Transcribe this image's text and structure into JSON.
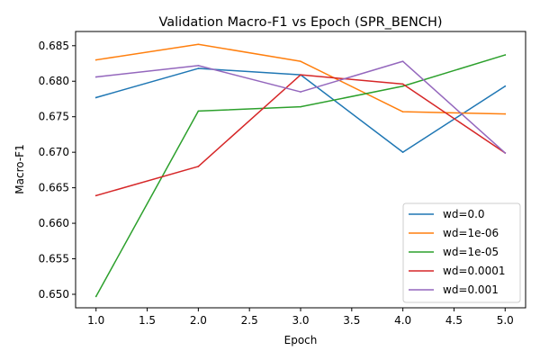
{
  "chart_data": {
    "type": "line",
    "title": "Validation Macro-F1 vs Epoch (SPR_BENCH)",
    "xlabel": "Epoch",
    "ylabel": "Macro-F1",
    "xlim": [
      0.8,
      5.2
    ],
    "ylim": [
      0.6481,
      0.687
    ],
    "xticks": [
      1.0,
      1.5,
      2.0,
      2.5,
      3.0,
      3.5,
      4.0,
      4.5,
      5.0
    ],
    "xtick_labels": [
      "1.0",
      "1.5",
      "2.0",
      "2.5",
      "3.0",
      "3.5",
      "4.0",
      "4.5",
      "5.0"
    ],
    "yticks": [
      0.65,
      0.655,
      0.66,
      0.665,
      0.67,
      0.675,
      0.68,
      0.685
    ],
    "ytick_labels": [
      "0.650",
      "0.655",
      "0.660",
      "0.665",
      "0.670",
      "0.675",
      "0.680",
      "0.685"
    ],
    "grid": false,
    "legend_position": "bottom-right",
    "x": [
      1,
      2,
      3,
      4,
      5
    ],
    "series": [
      {
        "name": "wd=0.0",
        "color": "#1f77b4",
        "values": [
          0.6777,
          0.6818,
          0.6809,
          0.67,
          0.6793
        ]
      },
      {
        "name": "wd=1e-06",
        "color": "#ff7f0e",
        "values": [
          0.683,
          0.6852,
          0.6828,
          0.6757,
          0.6754
        ]
      },
      {
        "name": "wd=1e-05",
        "color": "#2ca02c",
        "values": [
          0.6497,
          0.6758,
          0.6764,
          0.6793,
          0.6837
        ]
      },
      {
        "name": "wd=0.0001",
        "color": "#d62728",
        "values": [
          0.6639,
          0.668,
          0.6809,
          0.6796,
          0.6699
        ]
      },
      {
        "name": "wd=0.001",
        "color": "#9467bd",
        "values": [
          0.6806,
          0.6822,
          0.6785,
          0.6828,
          0.6699
        ]
      }
    ]
  }
}
